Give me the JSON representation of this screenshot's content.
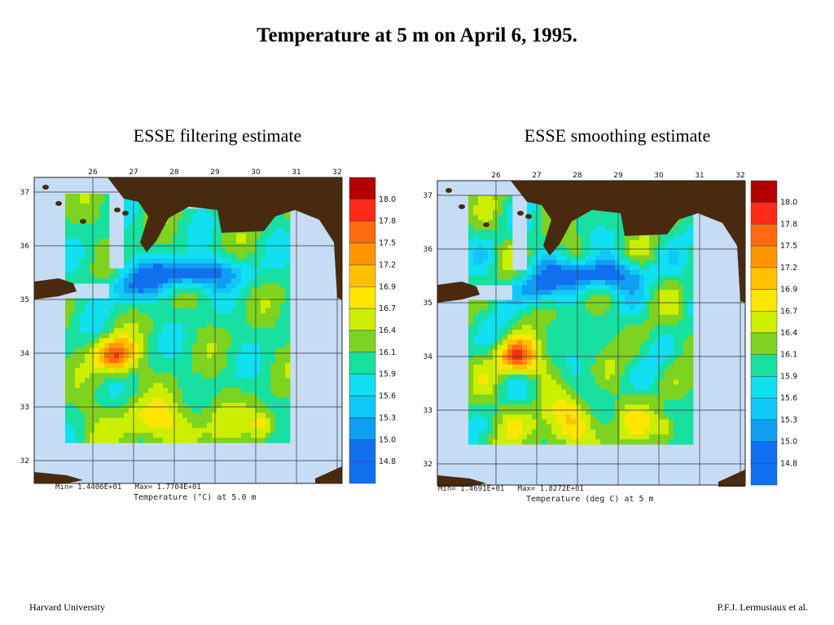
{
  "title": "Temperature at 5 m on April 6, 1995.",
  "footer": {
    "left": "Harvard University",
    "right": "P.F.J. Lermusiaux et al."
  },
  "colors": {
    "land": "#4a2a0e",
    "sea_outside": "#c6dcf5",
    "grid": "#333333"
  },
  "panels": [
    {
      "subtitle": "ESSE filtering estimate",
      "lon_ticks": [
        "26",
        "27",
        "28",
        "29",
        "30",
        "31",
        "32"
      ],
      "lat_ticks": [
        "37",
        "36",
        "35",
        "34",
        "33",
        "32"
      ],
      "stats": "Min= 1.4406E+01   Max= 1.7704E+01",
      "caption": "Temperature (°C) at 5.0 m",
      "colorbar": {
        "labels": [
          "18.0",
          "17.8",
          "17.5",
          "17.2",
          "16.9",
          "16.7",
          "16.4",
          "16.1",
          "15.9",
          "15.6",
          "15.3",
          "15.0",
          "14.8"
        ],
        "colors": [
          "#b40000",
          "#ff2a1a",
          "#ff6a10",
          "#ff9600",
          "#ffc000",
          "#ffe600",
          "#ccee00",
          "#7ed321",
          "#18e0a0",
          "#10e0f0",
          "#10c8f8",
          "#109ef0",
          "#1070f0"
        ]
      }
    },
    {
      "subtitle": "ESSE smoothing estimate",
      "lon_ticks": [
        "26",
        "27",
        "28",
        "29",
        "30",
        "31",
        "32"
      ],
      "lat_ticks": [
        "37",
        "36",
        "35",
        "34",
        "33",
        "32"
      ],
      "stats": "Min= 1.4691E+01   Max= 1.8272E+01",
      "caption": "Temperature (deg C) at 5 m",
      "colorbar": {
        "labels": [
          "18.0",
          "17.8",
          "17.5",
          "17.2",
          "16.9",
          "16.7",
          "16.4",
          "16.1",
          "15.9",
          "15.6",
          "15.3",
          "15.0",
          "14.8"
        ],
        "colors": [
          "#b40000",
          "#ff2a1a",
          "#ff6a10",
          "#ff9600",
          "#ffc000",
          "#ffe600",
          "#ccee00",
          "#7ed321",
          "#18e0a0",
          "#10e0f0",
          "#10c8f8",
          "#109ef0",
          "#1070f0"
        ]
      }
    }
  ]
}
